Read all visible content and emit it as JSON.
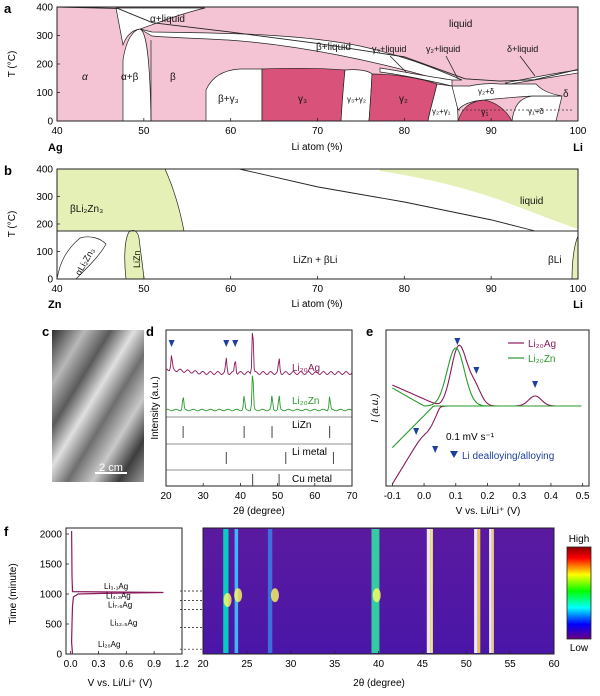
{
  "chart_data": [
    {
      "panel": "a",
      "type": "area",
      "xlabel": "Li atom (%)",
      "ylabel": "T (°C)",
      "xlim": [
        40,
        100
      ],
      "ylim": [
        0,
        400
      ],
      "x_ticks": [
        40,
        50,
        60,
        70,
        80,
        90,
        100
      ],
      "y_ticks": [
        0,
        100,
        200,
        300,
        400
      ],
      "left_element": "Ag",
      "right_element": "Li",
      "region_labels": [
        "α",
        "α+β",
        "β",
        "β+γ₃",
        "γ₃",
        "γ₃+γ₂",
        "γ₂",
        "γ₂+γ₁",
        "γ₁",
        "γ₁+δ",
        "δ",
        "γ₂+δ",
        "liquid",
        "α+liquid",
        "β+liquid",
        "γ₃+liquid",
        "γ₂+liquid",
        "δ+liquid"
      ],
      "liquidus": {
        "x": [
          40,
          47,
          51,
          60,
          70,
          80,
          87,
          91,
          95,
          100
        ],
        "y": [
          400,
          395,
          345,
          312,
          272,
          225,
          148,
          140,
          145,
          181
        ]
      },
      "colors": {
        "single_phase": "#f4c4d4",
        "intermetallic": "#d9527a",
        "two_phase": "#ffffff"
      }
    },
    {
      "panel": "b",
      "type": "area",
      "xlabel": "Li atom (%)",
      "ylabel": "T (°C)",
      "xlim": [
        40,
        100
      ],
      "ylim": [
        0,
        400
      ],
      "x_ticks": [
        40,
        50,
        60,
        70,
        80,
        90,
        100
      ],
      "y_ticks": [
        0,
        100,
        200,
        300,
        400
      ],
      "left_element": "Zn",
      "right_element": "Li",
      "region_labels": [
        "βLi₂Zn₃",
        "αLi₂Zn₃",
        "LiZn",
        "LiZn + βLi",
        "βLi",
        "liquid"
      ],
      "liquidus": {
        "x": [
          61,
          70,
          80,
          90,
          95
        ],
        "y": [
          400,
          335,
          280,
          215,
          175
        ]
      },
      "colors": {
        "phase": "#e4f0b5"
      }
    },
    {
      "panel": "d",
      "type": "line",
      "xlabel": "2θ (degree)",
      "ylabel": "Intensity (a.u.)",
      "xlim": [
        20,
        70
      ],
      "x_ticks": [
        20,
        30,
        40,
        50,
        60,
        70
      ],
      "series": [
        {
          "name": "Li₂₀Ag",
          "color": "#8b1a5c",
          "peaks": [
            21.5,
            36.2,
            38.6,
            43.3,
            50.4
          ]
        },
        {
          "name": "Li₂₀Zn",
          "color": "#2a9a2a",
          "peaks": [
            24.6,
            41.0,
            43.3,
            48.5,
            50.4,
            64.0
          ]
        }
      ],
      "references": [
        {
          "name": "LiZn",
          "peaks": [
            24.6,
            41.0,
            48.5,
            64.0
          ]
        },
        {
          "name": "Li metal",
          "peaks": [
            36.2,
            52.2,
            65.0
          ]
        },
        {
          "name": "Cu metal",
          "peaks": [
            43.3,
            50.4
          ]
        }
      ]
    },
    {
      "panel": "e",
      "type": "line",
      "xlabel": "V vs. Li/Li⁺ (V)",
      "ylabel": "I (a.u.)",
      "xlim": [
        -0.12,
        0.52
      ],
      "x_ticks": [
        -0.1,
        0.0,
        0.1,
        0.2,
        0.3,
        0.4,
        0.5
      ],
      "annotation_rate": "0.1 mV s⁻¹",
      "annotation_marker": "Li dealloying/alloying",
      "series": [
        {
          "name": "Li₂₀Ag",
          "color": "#8b1a5c"
        },
        {
          "name": "Li₂₀Zn",
          "color": "#2a9a2a"
        }
      ]
    },
    {
      "panel": "f",
      "type": "heatmap",
      "profile": {
        "xlabel": "V vs. Li/Li⁺ (V)",
        "ylabel": "Time (minute)",
        "xlim": [
          -0.05,
          1.2
        ],
        "ylim": [
          0,
          2100
        ],
        "x_ticks": [
          0.0,
          0.3,
          0.6,
          0.9,
          1.2
        ],
        "y_ticks": [
          0,
          500,
          1000,
          1500,
          2000
        ],
        "phase_labels": [
          {
            "text": "Li₂₀Ag",
            "time": 80
          },
          {
            "text": "Li₁₂.₅Ag",
            "time": 440
          },
          {
            "text": "Li₇.₆Ag",
            "time": 740
          },
          {
            "text": "Li₄.₃Ag",
            "time": 890
          },
          {
            "text": "Li₃.₁Ag",
            "time": 1050
          }
        ]
      },
      "heatmap": {
        "xlabel": "2θ (degree)",
        "xlim": [
          20,
          60
        ],
        "ylim": [
          0,
          2100
        ],
        "x_ticks": [
          20,
          25,
          30,
          35,
          40,
          45,
          50,
          55,
          60
        ],
        "colorbar_high": "High",
        "colorbar_low": "Low"
      }
    }
  ],
  "panels": {
    "c": {
      "letter": "c",
      "scale_label": "2 cm"
    },
    "a": {
      "letter": "a"
    },
    "b": {
      "letter": "b"
    },
    "d": {
      "letter": "d"
    },
    "e": {
      "letter": "e"
    },
    "f": {
      "letter": "f"
    }
  }
}
